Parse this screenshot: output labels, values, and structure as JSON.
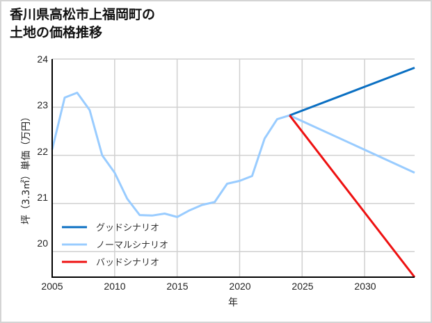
{
  "title": {
    "line1": "香川県高松市上福岡町の",
    "line2": "土地の価格推移"
  },
  "chart_data": {
    "type": "line",
    "title": "香川県高松市上福岡町の土地の価格推移",
    "xlabel": "年",
    "ylabel": "坪（3.3㎡）単価（万円）",
    "xlim": [
      2005,
      2034
    ],
    "ylim": [
      19.47,
      24
    ],
    "x_ticks": [
      2005,
      2010,
      2015,
      2020,
      2025,
      2030
    ],
    "y_ticks": [
      20,
      21,
      22,
      23,
      24
    ],
    "grid": true,
    "legend_position": "lower left",
    "series": [
      {
        "name": "グッドシナリオ",
        "color": "#0a6fc2",
        "x": [
          2024,
          2034
        ],
        "values": [
          22.83,
          23.82
        ]
      },
      {
        "name": "ノーマルシナリオ",
        "color": "#99ccff",
        "x": [
          2005,
          2006,
          2007,
          2008,
          2009,
          2010,
          2011,
          2012,
          2013,
          2014,
          2015,
          2016,
          2017,
          2018,
          2019,
          2020,
          2021,
          2022,
          2023,
          2024,
          2034
        ],
        "values": [
          22.12,
          23.2,
          23.3,
          22.94,
          22.0,
          21.64,
          21.1,
          20.76,
          20.75,
          20.79,
          20.72,
          20.86,
          20.97,
          21.03,
          21.41,
          21.47,
          21.57,
          22.35,
          22.75,
          22.83,
          21.64
        ]
      },
      {
        "name": "バッドシナリオ",
        "color": "#ee1111",
        "x": [
          2024,
          2034
        ],
        "values": [
          22.83,
          19.47
        ]
      }
    ]
  },
  "legend": {
    "good": "グッドシナリオ",
    "normal": "ノーマルシナリオ",
    "bad": "バッドシナリオ"
  },
  "axes": {
    "xlabel": "年",
    "ylabel": "坪（3.3㎡）単価（万円）",
    "x_ticks": [
      "2005",
      "2010",
      "2015",
      "2020",
      "2025",
      "2030"
    ],
    "y_ticks": [
      "24",
      "23",
      "22",
      "21",
      "20"
    ]
  }
}
